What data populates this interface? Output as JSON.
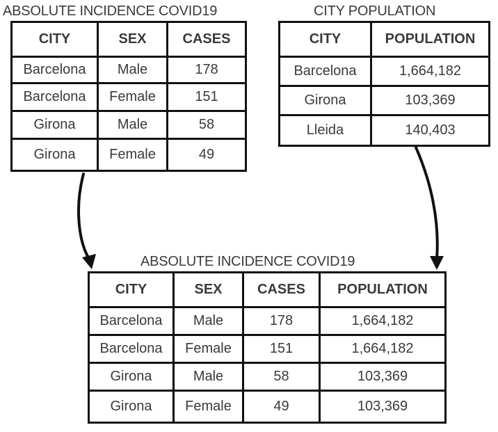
{
  "tables": {
    "incidence": {
      "title": "ABSOLUTE INCIDENCE COVID19",
      "headers": [
        "CITY",
        "SEX",
        "CASES"
      ],
      "rows": [
        [
          "Barcelona",
          "Male",
          "178"
        ],
        [
          "Barcelona",
          "Female",
          "151"
        ],
        [
          "Girona",
          "Male",
          "58"
        ],
        [
          "Girona",
          "Female",
          "49"
        ]
      ]
    },
    "population": {
      "title": "CITY POPULATION",
      "headers": [
        "CITY",
        "POPULATION"
      ],
      "rows": [
        [
          "Barcelona",
          "1,664,182"
        ],
        [
          "Girona",
          "103,369"
        ],
        [
          "Lleida",
          "140,403"
        ]
      ]
    },
    "joined": {
      "title": "ABSOLUTE INCIDENCE COVID19",
      "headers": [
        "CITY",
        "SEX",
        "CASES",
        "POPULATION"
      ],
      "rows": [
        [
          "Barcelona",
          "Male",
          "178",
          "1,664,182"
        ],
        [
          "Barcelona",
          "Female",
          "151",
          "1,664,182"
        ],
        [
          "Girona",
          "Male",
          "58",
          "103,369"
        ],
        [
          "Girona",
          "Female",
          "49",
          "103,369"
        ]
      ]
    }
  },
  "colors": {
    "border": "#111111",
    "text": "#3a3a3a"
  }
}
